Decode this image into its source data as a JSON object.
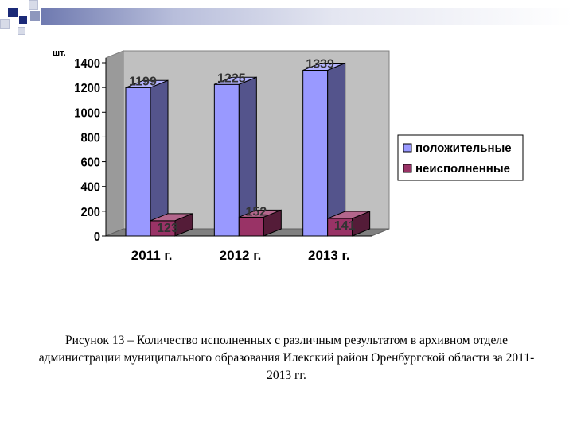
{
  "chart_data": {
    "type": "bar",
    "categories": [
      "2011 г.",
      "2012 г.",
      "2013 г."
    ],
    "series": [
      {
        "name": "положительные",
        "values": [
          1199,
          1225,
          1339
        ],
        "color": "#9999ff",
        "label_color": "#333333"
      },
      {
        "name": "неисполненные",
        "values": [
          123,
          152,
          141
        ],
        "color": "#993366",
        "label_color": "#333333"
      }
    ],
    "unit_label": "шт.",
    "ylim": [
      0,
      1400
    ],
    "yticks": [
      0,
      200,
      400,
      600,
      800,
      1000,
      1200,
      1400
    ],
    "legend_position": "right",
    "grid": false,
    "three_d": true,
    "wall_color": "#c0c0c0"
  },
  "caption": "Рисунок 13  – Количество исполненных с различным результатом  в архивном отделе администрации муниципального образования Илекский район Оренбургской области за 2011-2013 гг."
}
